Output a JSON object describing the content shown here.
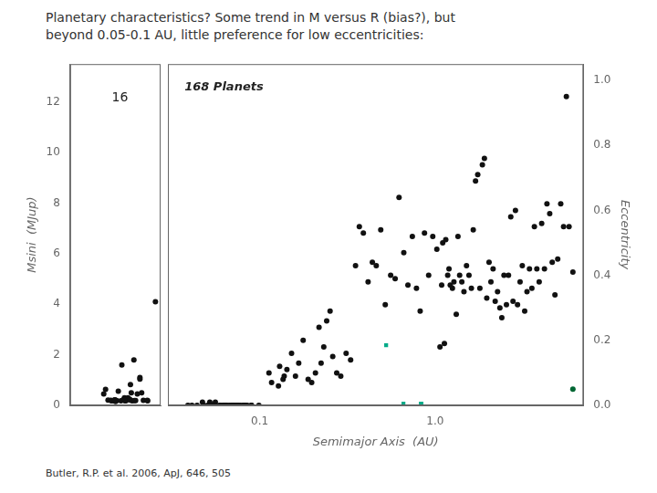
{
  "chart_data": [
    {
      "type": "scatter",
      "title": "Planetary characteristics? Some trend in M versus R (bias?), but\nbeyond 0.05-0.1 AU, little preference for low eccentricities:",
      "y_label": "Msini  (MJup)",
      "xlim": [
        0.0,
        0.105
      ],
      "xticks": [],
      "ylim": [
        0.0,
        13.5
      ],
      "yticks": [
        0,
        2,
        4,
        6,
        8,
        10,
        12
      ],
      "tick_labels": "y",
      "grid": false,
      "annotations": [
        "16"
      ],
      "series": [
        {
          "color": "#111111",
          "marker": "circle",
          "x": [
            0.039,
            0.0411,
            0.0472,
            0.0505,
            0.052,
            0.0527,
            0.054,
            0.0559,
            0.06,
            0.063,
            0.063,
            0.064,
            0.065,
            0.067,
            0.069,
            0.07,
            0.071,
            0.072,
            0.074,
            0.076,
            0.078,
            0.081,
            0.083,
            0.085,
            0.09,
            0.099,
            0.044,
            0.048,
            0.0517,
            0.059,
            0.0618,
            0.0634,
            0.07,
            0.0745,
            0.081,
            0.0895
          ],
          "values": [
            0.45,
            0.63,
            0.2,
            0.18,
            0.22,
            0.15,
            0.19,
            0.56,
            1.6,
            0.25,
            0.3,
            0.18,
            0.19,
            0.3,
            0.24,
            0.82,
            0.5,
            0.18,
            1.8,
            0.19,
            0.45,
            1.1,
            0.5,
            0.2,
            0.18,
            4.1,
            0.21,
            0.18,
            0.22,
            0.18,
            0.22,
            0.19,
            0.21,
            0.19,
            1.04,
            0.2
          ]
        }
      ]
    },
    {
      "type": "scatter",
      "x_label": "Semimajor Axis  (AU)",
      "y_label": "Eccentricity",
      "log": "x",
      "xlim": [
        0.03,
        7.0
      ],
      "xticks": [
        0.1,
        {
          "value": 1.0,
          "label": "1.0"
        }
      ],
      "ylim": [
        0.0,
        1.05
      ],
      "yticks": [
        {
          "value": 0.0,
          "label": "0.0"
        },
        0.2,
        0.4,
        0.6,
        0.8,
        {
          "value": 1.0,
          "label": "1.0"
        }
      ],
      "grid": false,
      "annotations": [
        "168 Planets",
        "Butler, R.P. et al. 2006, ApJ, 646, 505"
      ],
      "series": [
        {
          "color": "#111111",
          "marker": "circle",
          "x": [
            0.039,
            0.0411,
            0.0472,
            0.0505,
            0.052,
            0.0527,
            0.054,
            0.0559,
            0.06,
            0.063,
            0.063,
            0.064,
            0.065,
            0.067,
            0.069,
            0.07,
            0.071,
            0.072,
            0.074,
            0.076,
            0.078,
            0.081,
            0.083,
            0.085,
            0.09,
            0.099,
            0.044,
            0.048,
            0.0517,
            0.059,
            0.0618,
            0.0634,
            0.07,
            0.0745,
            0.081,
            0.0895,
            0.113,
            0.117,
            0.128,
            0.13,
            0.136,
            0.138,
            0.143,
            0.152,
            0.16,
            0.167,
            0.177,
            0.189,
            0.198,
            0.208,
            0.218,
            0.224,
            0.232,
            0.241,
            0.252,
            0.261,
            0.275,
            0.29,
            0.311,
            0.33,
            0.352,
            0.37,
            0.39,
            0.415,
            0.439,
            0.462,
            0.49,
            0.52,
            0.558,
            0.592,
            0.623,
            0.663,
            0.7,
            0.742,
            0.783,
            0.822,
            0.87,
            0.919,
            0.97,
            1.023,
            1.066,
            1.09,
            1.105,
            1.13,
            1.15,
            1.18,
            1.2,
            1.22,
            1.255,
            1.28,
            1.32,
            1.35,
            1.38,
            1.42,
            1.46,
            1.51,
            1.56,
            1.61,
            1.65,
            1.7,
            1.75,
            1.8,
            1.86,
            1.91,
            1.97,
            2.03,
            2.08,
            2.14,
            2.2,
            2.27,
            2.34,
            2.4,
            2.47,
            2.55,
            2.62,
            2.7,
            2.78,
            2.87,
            2.95,
            3.05,
            3.14,
            3.24,
            3.34,
            3.45,
            3.56,
            3.68,
            3.8,
            3.92,
            4.05,
            4.2,
            4.34,
            4.5,
            4.65,
            4.82,
            5.0,
            5.2,
            5.4,
            5.6,
            5.8,
            6.1
          ],
          "values": [
            0.0,
            0.0,
            0.01,
            0.0,
            0.01,
            0.0,
            0.0,
            0.01,
            0.0,
            0.0,
            0.0,
            0.0,
            0.0,
            0.0,
            0.0,
            0.0,
            0.0,
            0.0,
            0.0,
            0.0,
            0.0,
            0.0,
            0.0,
            0.0,
            0.0,
            0.0,
            0.0,
            0.0,
            0.0,
            0.0,
            0.0,
            0.0,
            0.0,
            0.0,
            0.0,
            0.0,
            0.1,
            0.07,
            0.06,
            0.12,
            0.08,
            0.09,
            0.11,
            0.16,
            0.09,
            0.13,
            0.2,
            0.08,
            0.07,
            0.1,
            0.24,
            0.13,
            0.18,
            0.26,
            0.29,
            0.15,
            0.1,
            0.09,
            0.16,
            0.14,
            0.43,
            0.55,
            0.53,
            0.38,
            0.44,
            0.43,
            0.54,
            0.31,
            0.4,
            0.39,
            0.64,
            0.47,
            0.37,
            0.52,
            0.36,
            0.29,
            0.53,
            0.4,
            0.52,
            0.48,
            0.18,
            0.37,
            0.5,
            0.19,
            0.51,
            0.4,
            0.42,
            0.37,
            0.36,
            0.38,
            0.28,
            0.52,
            0.4,
            0.38,
            0.35,
            0.43,
            0.4,
            0.36,
            0.54,
            0.69,
            0.71,
            0.36,
            0.74,
            0.76,
            0.33,
            0.44,
            0.38,
            0.42,
            0.32,
            0.35,
            0.3,
            0.27,
            0.4,
            0.31,
            0.4,
            0.58,
            0.32,
            0.6,
            0.31,
            0.38,
            0.43,
            0.29,
            0.35,
            0.42,
            0.36,
            0.55,
            0.42,
            0.38,
            0.56,
            0.42,
            0.62,
            0.59,
            0.44,
            0.34,
            0.45,
            0.62,
            0.55,
            0.95,
            0.55,
            0.41
          ]
        },
        {
          "color": "#00aa88",
          "marker": "square",
          "x": [
            0.526,
            0.66,
            0.83,
            0.835
          ],
          "values": [
            0.185,
            0.005,
            0.005,
            0.005
          ]
        },
        {
          "color": "#006633",
          "marker": "circle",
          "x": [
            6.1
          ],
          "values": [
            0.05
          ]
        }
      ]
    }
  ]
}
